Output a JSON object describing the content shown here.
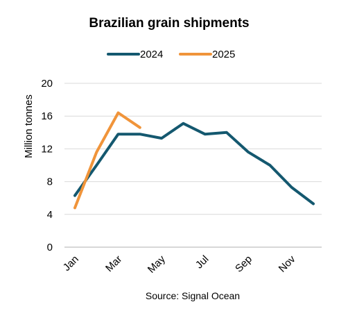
{
  "chart_data": {
    "type": "line",
    "title": "Brazilian grain shipments",
    "ylabel": "Million tonnes",
    "xlabel": "",
    "source": "Source: Signal Ocean",
    "ylim": [
      0,
      20
    ],
    "yticks": [
      0,
      4,
      8,
      12,
      16,
      20
    ],
    "months": [
      "Jan",
      "Feb",
      "Mar",
      "Apr",
      "May",
      "Jun",
      "Jul",
      "Aug",
      "Sep",
      "Oct",
      "Nov",
      "Dec"
    ],
    "xtick_labels": [
      "Jan",
      "Mar",
      "May",
      "Jul",
      "Sep",
      "Nov"
    ],
    "grid": true,
    "legend_position": "top",
    "series": [
      {
        "name": "2024",
        "color": "#14586f",
        "x": [
          "Jan",
          "Feb",
          "Mar",
          "Apr",
          "May",
          "Jun",
          "Jul",
          "Aug",
          "Sep",
          "Oct",
          "Nov",
          "Dec"
        ],
        "values": [
          6.3,
          10.0,
          13.8,
          13.8,
          13.3,
          15.1,
          13.8,
          14.0,
          11.6,
          10.0,
          7.3,
          5.3
        ]
      },
      {
        "name": "2025",
        "color": "#f0943a",
        "x": [
          "Jan",
          "Feb",
          "Mar",
          "Apr"
        ],
        "values": [
          4.8,
          11.6,
          16.4,
          14.6
        ]
      }
    ]
  }
}
